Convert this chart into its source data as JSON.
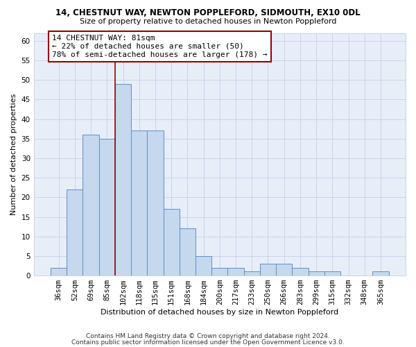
{
  "title1": "14, CHESTNUT WAY, NEWTON POPPLEFORD, SIDMOUTH, EX10 0DL",
  "title2": "Size of property relative to detached houses in Newton Poppleford",
  "xlabel": "Distribution of detached houses by size in Newton Poppleford",
  "ylabel": "Number of detached properties",
  "categories": [
    "36sqm",
    "52sqm",
    "69sqm",
    "85sqm",
    "102sqm",
    "118sqm",
    "135sqm",
    "151sqm",
    "168sqm",
    "184sqm",
    "200sqm",
    "217sqm",
    "233sqm",
    "250sqm",
    "266sqm",
    "283sqm",
    "299sqm",
    "315sqm",
    "332sqm",
    "348sqm",
    "365sqm"
  ],
  "values": [
    2,
    22,
    36,
    35,
    49,
    37,
    37,
    17,
    12,
    5,
    2,
    2,
    1,
    3,
    3,
    2,
    1,
    1,
    0,
    0,
    1
  ],
  "bar_color": "#c5d8ed",
  "bar_edge_color": "#5b8fc9",
  "ylim": [
    0,
    62
  ],
  "yticks": [
    0,
    5,
    10,
    15,
    20,
    25,
    30,
    35,
    40,
    45,
    50,
    55,
    60
  ],
  "vline_x": 3.5,
  "vline_color": "#990000",
  "annotation_text": "14 CHESTNUT WAY: 81sqm\n← 22% of detached houses are smaller (50)\n78% of semi-detached houses are larger (178) →",
  "annotation_box_color": "#ffffff",
  "annotation_box_edge": "#990000",
  "footer1": "Contains HM Land Registry data © Crown copyright and database right 2024.",
  "footer2": "Contains public sector information licensed under the Open Government Licence v3.0.",
  "grid_color": "#c8d4e8",
  "background_color": "#e8eef8",
  "title1_fontsize": 8.5,
  "title2_fontsize": 8.0,
  "xlabel_fontsize": 8.0,
  "ylabel_fontsize": 8.0,
  "tick_fontsize": 7.5,
  "annotation_fontsize": 8.0,
  "footer_fontsize": 6.5
}
